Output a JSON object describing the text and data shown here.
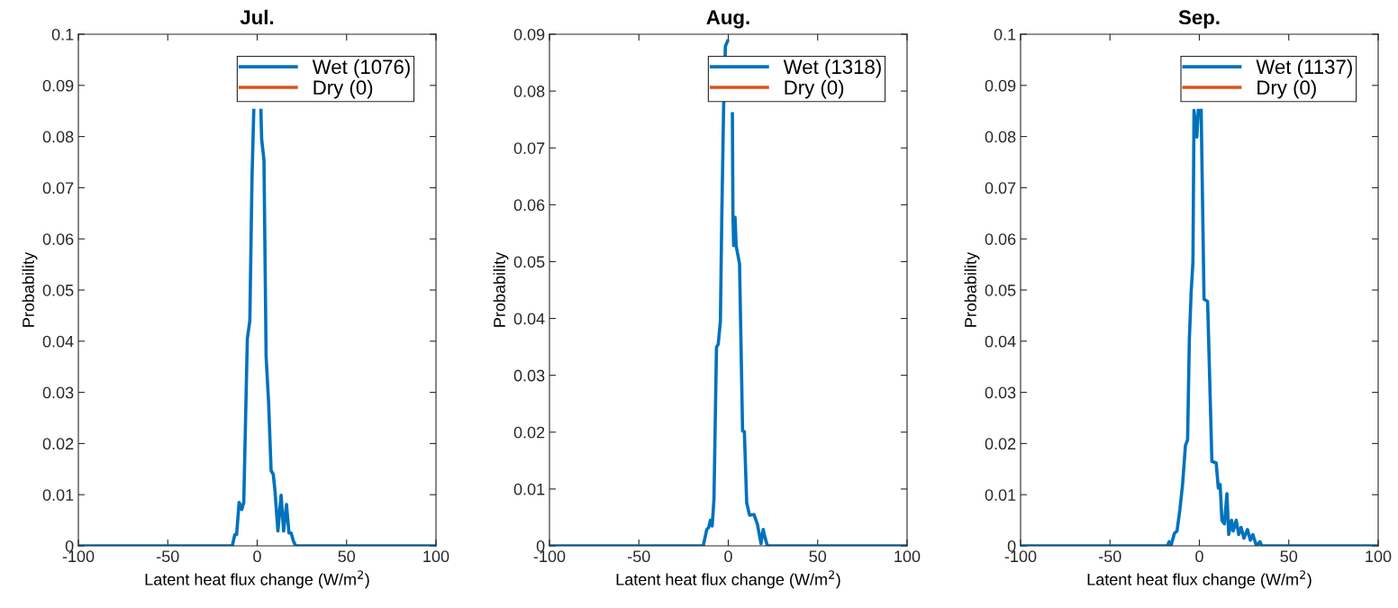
{
  "chart_data": [
    {
      "type": "line",
      "title": "Jul.",
      "xlabel": "Latent heat flux change (W/m$^{2}$)",
      "ylabel": "Probability",
      "xlim": [
        -100,
        100
      ],
      "xticks": [
        -100,
        -50,
        0,
        50,
        100
      ],
      "ylim": [
        0,
        0.1
      ],
      "yticks": [
        0,
        0.01,
        0.02,
        0.03,
        0.04,
        0.05,
        0.06,
        0.07,
        0.08,
        0.09,
        0.1
      ],
      "grid": false,
      "legend": "top right",
      "series": [
        {
          "name": "Wet (1076)",
          "color": "#0072bd",
          "x": [
            -100,
            -13.9,
            -12.5,
            -11.5,
            -10.1,
            -8.6,
            -7.5,
            -5.5,
            -4.1,
            -2.9,
            -1.9,
            0,
            2.1,
            2.5,
            3.8,
            5.0,
            6.4,
            7.8,
            9.0,
            10.0,
            11.6,
            13.4,
            14.8,
            16.4,
            17.8,
            19.0,
            20.4,
            21.6,
            100
          ],
          "values": [
            0,
            0,
            0.0022,
            0.0022,
            0.0085,
            0.0071,
            0.0085,
            0.0405,
            0.044,
            0.0718,
            0.0851,
            null,
            0.0851,
            0.0795,
            0.0754,
            0.037,
            0.028,
            0.0147,
            0.014,
            0.0106,
            0.0029,
            0.0099,
            0.0029,
            0.0081,
            0.0025,
            0.0025,
            0.0008,
            0,
            0
          ]
        },
        {
          "name": "Dry (0)",
          "color": "#d95319"
        }
      ]
    },
    {
      "type": "line",
      "title": "Aug.",
      "xlabel": "Latent heat flux change (W/m$^{2}$)",
      "ylabel": "Probability",
      "xlim": [
        -100,
        100
      ],
      "xticks": [
        -100,
        -50,
        0,
        50,
        100
      ],
      "ylim": [
        0,
        0.09
      ],
      "yticks": [
        0,
        0.01,
        0.02,
        0.03,
        0.04,
        0.05,
        0.06,
        0.07,
        0.08,
        0.09
      ],
      "grid": false,
      "legend": "top right",
      "series": [
        {
          "name": "Wet (1318)",
          "color": "#0072bd",
          "x": [
            -100,
            -14.0,
            -12.0,
            -11.0,
            -10.0,
            -9.0,
            -8.0,
            -6.6,
            -5.6,
            -4.4,
            -3.6,
            -2.6,
            -1.6,
            -0.4,
            0.8,
            2.3,
            2.6,
            3.0,
            3.8,
            4.4,
            6.3,
            8.0,
            9.0,
            10.3,
            11.9,
            14.4,
            16.3,
            18.3,
            19.5,
            20.7,
            21.9,
            100
          ],
          "values": [
            0,
            0,
            0.0029,
            0.0032,
            0.0045,
            0.0035,
            0.0082,
            0.0349,
            0.0355,
            0.0396,
            0.0584,
            0.0772,
            0.0879,
            0.0888,
            null,
            0.076,
            0.0584,
            0.0528,
            0.0578,
            0.0528,
            0.0496,
            0.0202,
            0.0201,
            0.0076,
            0.0054,
            0.0055,
            0.0038,
            0.0004,
            0.0029,
            0.0013,
            0,
            0
          ]
        },
        {
          "name": "Dry (0)",
          "color": "#d95319"
        }
      ]
    },
    {
      "type": "line",
      "title": "Sep.",
      "xlabel": "Latent heat flux change (W/m$^{2}$)",
      "ylabel": "Probability",
      "xlim": [
        -100,
        100
      ],
      "xticks": [
        -100,
        -50,
        0,
        50,
        100
      ],
      "ylim": [
        0,
        0.1
      ],
      "yticks": [
        0,
        0.01,
        0.02,
        0.03,
        0.04,
        0.05,
        0.06,
        0.07,
        0.08,
        0.09,
        0.1
      ],
      "grid": false,
      "legend": "top right",
      "series": [
        {
          "name": "Wet (1137)",
          "color": "#0072bd",
          "x": [
            -100,
            -17.9,
            -16.9,
            -15.9,
            -13.9,
            -12.5,
            -10.9,
            -9.4,
            -7.8,
            -6.6,
            -5.6,
            -4.6,
            -3.6,
            -3.0,
            -1.4,
            -0.6,
            0.2,
            1.0,
            2.6,
            4.6,
            7.0,
            9.4,
            10.6,
            11.6,
            12.6,
            14.0,
            15.4,
            16.4,
            18.0,
            18.9,
            20.6,
            22.0,
            23.3,
            24.9,
            26.9,
            28.5,
            29.9,
            31.9,
            33.9,
            34.9,
            100
          ],
          "values": [
            0,
            0,
            0.0008,
            0,
            0.0025,
            0.0029,
            0.0071,
            0.012,
            0.0196,
            0.0207,
            0.0405,
            0.0496,
            0.0555,
            0.0851,
            0.0799,
            0.0851,
            null,
            0.0851,
            0.0482,
            0.0478,
            0.0165,
            0.0162,
            0.0113,
            0.012,
            0.005,
            0.0043,
            0.0102,
            0.0022,
            0.005,
            0.0029,
            0.005,
            0.0022,
            0.0036,
            0.0015,
            0.0032,
            0.0011,
            0.0022,
            0,
            0.0008,
            0,
            0
          ]
        },
        {
          "name": "Dry (0)",
          "color": "#d95319"
        }
      ]
    }
  ]
}
